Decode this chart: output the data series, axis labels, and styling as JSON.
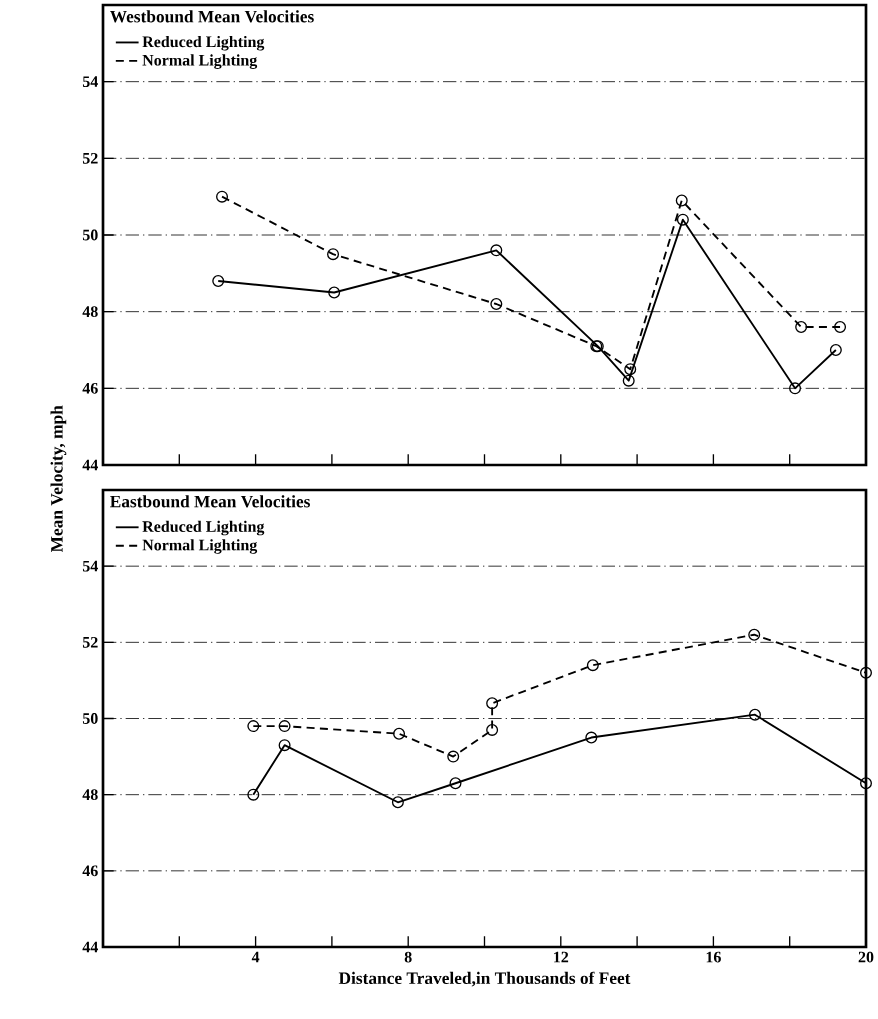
{
  "chart_data": [
    {
      "type": "line",
      "title": "Westbound Mean Velocities",
      "ylabel": "Mean Velocity, mph",
      "xlim": [
        0,
        20
      ],
      "xticks": [
        {
          "value": 2,
          "label": null
        },
        {
          "value": 4,
          "label": null
        },
        {
          "value": 6,
          "label": null
        },
        {
          "value": 8,
          "label": null
        },
        {
          "value": 10,
          "label": null
        },
        {
          "value": 12,
          "label": null
        },
        {
          "value": 14,
          "label": null
        },
        {
          "value": 16,
          "label": null
        },
        {
          "value": 18,
          "label": null
        }
      ],
      "ylim": [
        44,
        56
      ],
      "yticks": [
        44,
        46,
        48,
        50,
        52,
        54
      ],
      "tick_labels": "y",
      "grid": "y",
      "legend": "top left",
      "marker": "circle",
      "series": [
        {
          "name": "Reduced Lighting",
          "color": "#000000",
          "line_style": "solid",
          "x": [
            3.02,
            6.06,
            10.31,
            12.97,
            13.78,
            15.2,
            18.14,
            19.21
          ],
          "values": [
            48.8,
            48.5,
            49.6,
            47.1,
            46.2,
            50.4,
            46.0,
            47.0
          ]
        },
        {
          "name": "Normal Lighting",
          "color": "#000000",
          "line_style": "dashed",
          "x": [
            3.12,
            6.03,
            10.31,
            12.93,
            13.82,
            15.17,
            18.3,
            19.32
          ],
          "values": [
            51.0,
            49.5,
            48.2,
            47.1,
            46.5,
            50.9,
            47.6,
            47.6
          ]
        }
      ]
    },
    {
      "type": "line",
      "title": "Eastbound Mean Velocities",
      "xlabel": "Distance Traveled,in Thousands of Feet",
      "xlim": [
        0,
        20
      ],
      "xticks": [
        {
          "value": 2,
          "label": null
        },
        4,
        {
          "value": 6,
          "label": null
        },
        8,
        {
          "value": 10,
          "label": null
        },
        12,
        {
          "value": 14,
          "label": null
        },
        16,
        {
          "value": 18,
          "label": null
        },
        20
      ],
      "ylim": [
        44,
        56
      ],
      "yticks": [
        44,
        46,
        48,
        50,
        52,
        54
      ],
      "grid": "y",
      "legend": "top left",
      "marker": "circle",
      "series": [
        {
          "name": "Reduced Lighting",
          "color": "#000000",
          "line_style": "solid",
          "x": [
            3.94,
            4.76,
            7.73,
            9.24,
            12.8,
            17.09,
            20
          ],
          "values": [
            48.0,
            49.3,
            47.8,
            48.3,
            49.5,
            50.1,
            48.3
          ]
        },
        {
          "name": "Normal Lighting",
          "color": "#000000",
          "line_style": "dashed",
          "x": [
            3.94,
            4.76,
            7.76,
            9.18,
            10.2,
            10.2,
            12.84,
            17.07,
            20
          ],
          "values": [
            49.8,
            49.8,
            49.6,
            49.0,
            49.7,
            50.4,
            51.4,
            52.2,
            51.2
          ]
        }
      ]
    }
  ]
}
